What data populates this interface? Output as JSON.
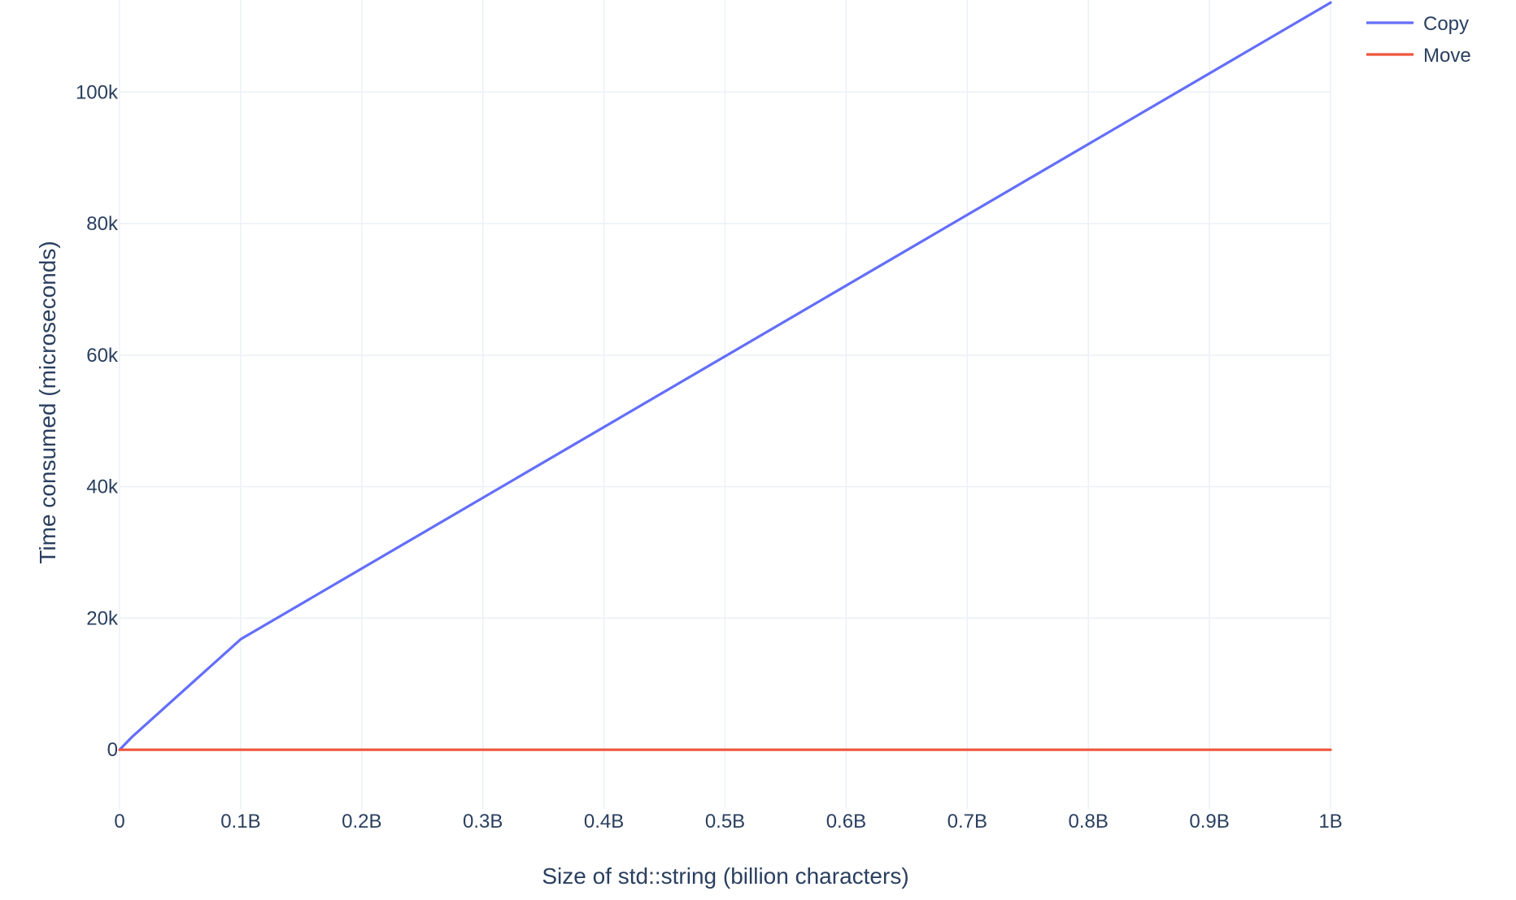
{
  "chart_data": {
    "type": "line",
    "title": "",
    "xlabel": "Size of std::string (billion characters)",
    "ylabel": "Time consumed (microseconds)",
    "xlim": [
      0,
      1000000000
    ],
    "ylim": [
      -9000,
      114000
    ],
    "grid": true,
    "legend_position": "top-right",
    "x_ticks": [
      {
        "value": 0,
        "label": "0"
      },
      {
        "value": 100000000,
        "label": "0.1B"
      },
      {
        "value": 200000000,
        "label": "0.2B"
      },
      {
        "value": 300000000,
        "label": "0.3B"
      },
      {
        "value": 400000000,
        "label": "0.4B"
      },
      {
        "value": 500000000,
        "label": "0.5B"
      },
      {
        "value": 600000000,
        "label": "0.6B"
      },
      {
        "value": 700000000,
        "label": "0.7B"
      },
      {
        "value": 800000000,
        "label": "0.8B"
      },
      {
        "value": 900000000,
        "label": "0.9B"
      },
      {
        "value": 1000000000,
        "label": "1B"
      }
    ],
    "y_ticks": [
      {
        "value": 0,
        "label": "0"
      },
      {
        "value": 20000,
        "label": "20k"
      },
      {
        "value": 40000,
        "label": "40k"
      },
      {
        "value": 60000,
        "label": "60k"
      },
      {
        "value": 80000,
        "label": "80k"
      },
      {
        "value": 100000,
        "label": "100k"
      }
    ],
    "series": [
      {
        "name": "Copy",
        "color": "#636efa",
        "x": [
          0,
          10000000,
          100000000,
          1000000000
        ],
        "y": [
          0,
          1900,
          16800,
          113600
        ]
      },
      {
        "name": "Move",
        "color": "#ef553b",
        "x": [
          0,
          10000000,
          100000000,
          1000000000
        ],
        "y": [
          0,
          0,
          0,
          0
        ]
      }
    ]
  }
}
